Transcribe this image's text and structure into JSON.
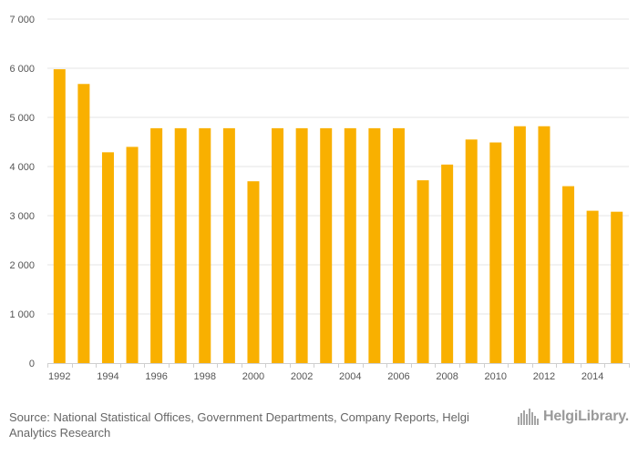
{
  "chart_data": {
    "type": "bar",
    "title": "",
    "xlabel": "",
    "ylabel": "",
    "categories": [
      "1992",
      "1993",
      "1994",
      "1995",
      "1996",
      "1997",
      "1998",
      "1999",
      "2000",
      "2001",
      "2002",
      "2003",
      "2004",
      "2005",
      "2006",
      "2007",
      "2008",
      "2009",
      "2010",
      "2011",
      "2012",
      "2013",
      "2014",
      "2015"
    ],
    "values": [
      5980,
      5680,
      4290,
      4400,
      4780,
      4780,
      4780,
      4780,
      3700,
      4780,
      4780,
      4780,
      4780,
      4780,
      4780,
      3720,
      4040,
      4550,
      4490,
      4820,
      4820,
      3600,
      3100,
      3080
    ],
    "ylim": [
      0,
      7000
    ],
    "yticks": [
      0,
      1000,
      2000,
      3000,
      4000,
      5000,
      6000,
      7000
    ],
    "ytick_labels": [
      "0",
      "1 000",
      "2 000",
      "3 000",
      "4 000",
      "5 000",
      "6 000",
      "7 000"
    ],
    "xtick_labels": [
      "1992",
      "1994",
      "1996",
      "1998",
      "2000",
      "2002",
      "2004",
      "2006",
      "2008",
      "2010",
      "2012",
      "2014"
    ],
    "grid": true,
    "legend": "none",
    "bar_color": "#F9B000"
  },
  "footer": {
    "source_label": "Source:",
    "source_text": "National Statistical Offices, Government Departments, Company Reports, Helgi Analytics Research"
  },
  "logo": {
    "text": "HelgiLibrary.",
    "icon": "city-skyline-icon"
  },
  "colors": {
    "bar": "#F9B000",
    "grid": "#e6e6e6",
    "axis": "#cfcfcf",
    "tick_text": "#555555",
    "footer_text": "#666666",
    "logo": "#9a9a9a"
  }
}
